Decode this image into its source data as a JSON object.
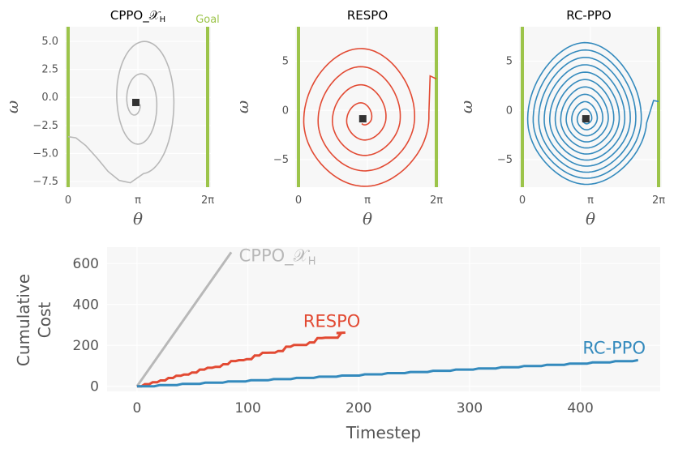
{
  "chart_data": [
    {
      "type": "line",
      "title": "CPPO_𝒳",
      "title_sub": "H",
      "xlabel": "θ",
      "ylabel": "ω",
      "xticks": [
        "0",
        "π",
        "2π"
      ],
      "yticks": [
        "5.0",
        "2.5",
        "0.0",
        "−2.5",
        "−5.0",
        "−7.5"
      ],
      "ytick_values": [
        5.0,
        2.5,
        0.0,
        -2.5,
        -5.0,
        -7.5
      ],
      "xlim": [
        0,
        6.283
      ],
      "ylim": [
        -8.0,
        6.3
      ],
      "goal_label": "Goal",
      "goal_lines_x": [
        0,
        6.283
      ],
      "goal_color": "#9cc44a",
      "line_color": "#b8b8b8",
      "end_marker": [
        3.05,
        -0.45
      ]
    },
    {
      "type": "line",
      "title": "RESPO",
      "xlabel": "θ",
      "ylabel": "ω",
      "xticks": [
        "0",
        "π",
        "2π"
      ],
      "yticks": [
        "5",
        "0",
        "−5"
      ],
      "ytick_values": [
        5,
        0,
        -5
      ],
      "xlim": [
        0,
        6.283
      ],
      "ylim": [
        -7.8,
        8.5
      ],
      "goal_lines_x": [
        0,
        6.283
      ],
      "goal_color": "#9cc44a",
      "line_color": "#e24a33",
      "end_marker": [
        2.93,
        -0.85
      ]
    },
    {
      "type": "line",
      "title": "RC-PPO",
      "xlabel": "θ",
      "ylabel": "ω",
      "xticks": [
        "0",
        "π",
        "2π"
      ],
      "yticks": [
        "5",
        "0",
        "−5"
      ],
      "ytick_values": [
        5,
        0,
        -5
      ],
      "xlim": [
        0,
        6.283
      ],
      "ylim": [
        -7.8,
        8.5
      ],
      "goal_lines_x": [
        0,
        6.283
      ],
      "goal_color": "#9cc44a",
      "line_color": "#348abd",
      "end_marker": [
        2.93,
        -0.85
      ]
    },
    {
      "type": "line",
      "xlabel": "Timestep",
      "ylabel_lines": [
        "Cumulative",
        "Cost"
      ],
      "xticks": [
        "0",
        "100",
        "200",
        "300",
        "400"
      ],
      "xtick_values": [
        0,
        100,
        200,
        300,
        400
      ],
      "yticks": [
        "0",
        "200",
        "400",
        "600"
      ],
      "ytick_values": [
        0,
        200,
        400,
        600
      ],
      "xlim": [
        -27,
        472
      ],
      "ylim": [
        -25,
        680
      ],
      "series": [
        {
          "name": "CPPO_𝒳",
          "name_sub": "H",
          "color": "#b8b8b8",
          "x": [
            0,
            85
          ],
          "y": [
            0,
            655
          ],
          "label_at": [
            92,
            610
          ]
        },
        {
          "name": "RESPO",
          "color": "#e24a33",
          "end_x": 188,
          "end_y": 262,
          "label_at": [
            150,
            290
          ]
        },
        {
          "name": "RC-PPO",
          "color": "#348abd",
          "end_x": 452,
          "end_y": 128,
          "label_at": [
            402,
            160
          ]
        }
      ]
    }
  ]
}
